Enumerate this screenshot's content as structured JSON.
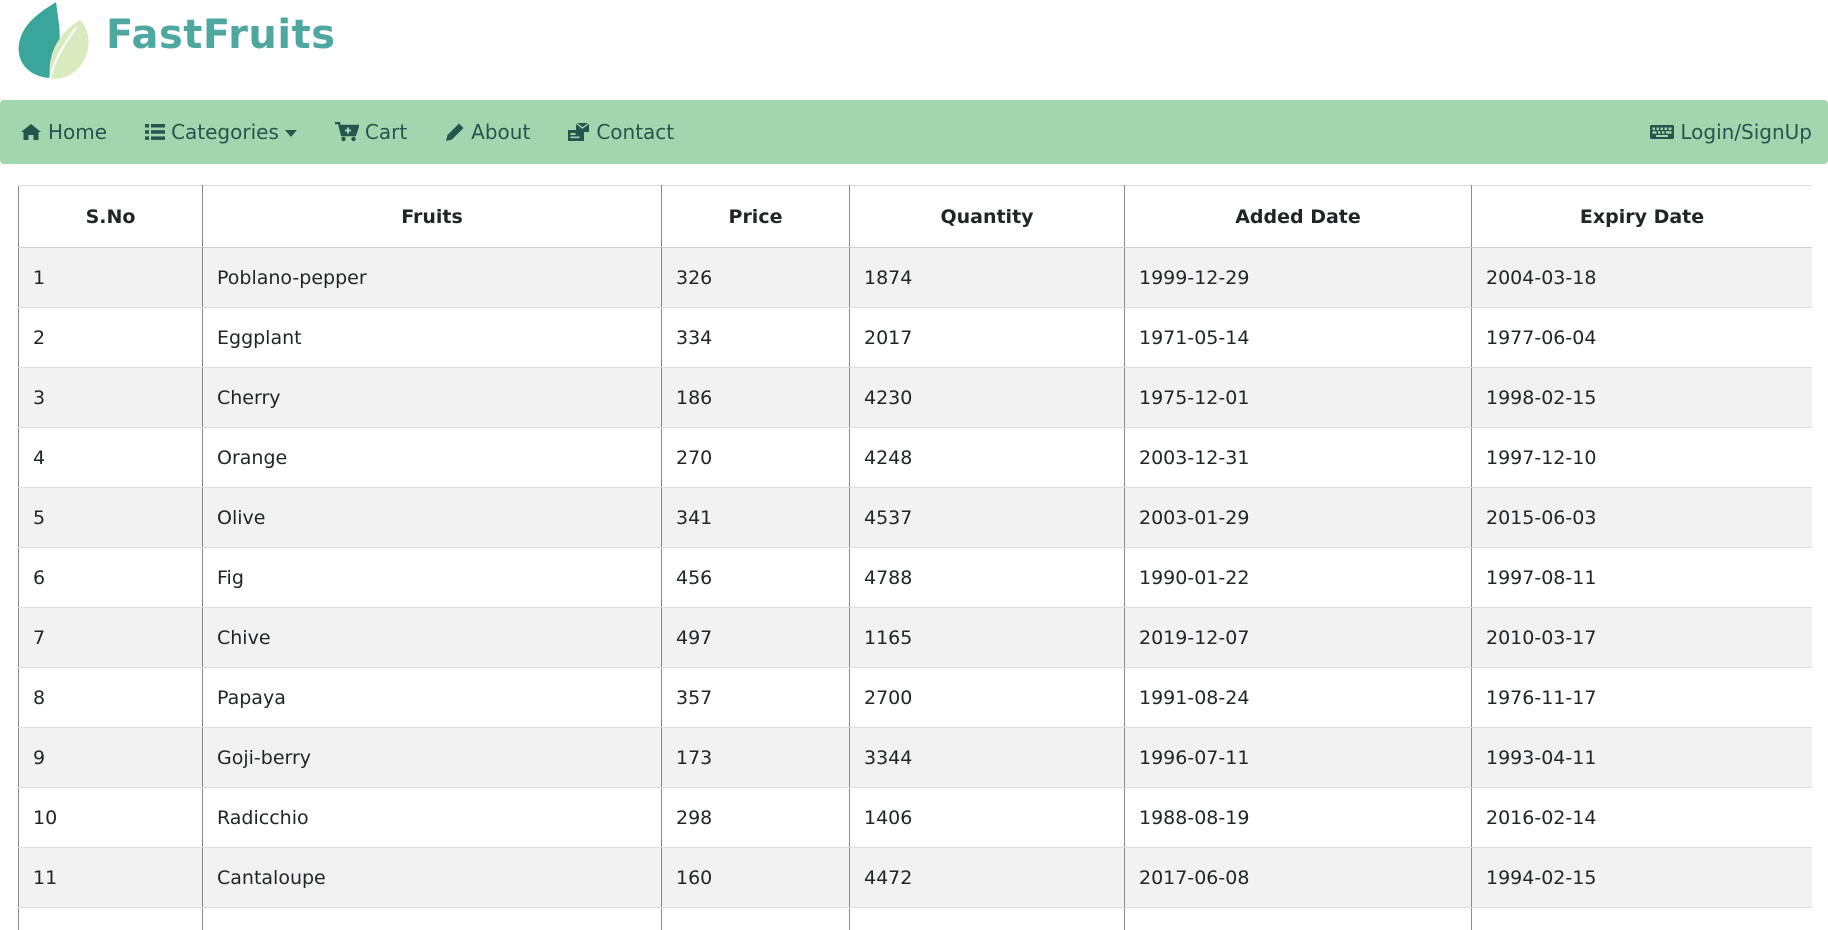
{
  "brand": {
    "name": "FastFruits",
    "colors": {
      "primary": "#4fa8a0",
      "leaf_light": "#d9eabf",
      "nav_bg": "#a3d5ae",
      "nav_text": "#25564e"
    }
  },
  "nav": {
    "items": [
      {
        "label": "Home",
        "icon": "home-icon"
      },
      {
        "label": "Categories",
        "icon": "list-icon"
      },
      {
        "label": "Cart",
        "icon": "cart-icon"
      },
      {
        "label": "About",
        "icon": "pencil-icon"
      },
      {
        "label": "Contact",
        "icon": "contact-icon"
      }
    ],
    "right": {
      "label": "Login/SignUp",
      "icon": "keyboard-icon"
    }
  },
  "table": {
    "columns": [
      "S.No",
      "Fruits",
      "Price",
      "Quantity",
      "Added Date",
      "Expiry Date"
    ],
    "rows": [
      [
        "1",
        "Poblano-pepper",
        "326",
        "1874",
        "1999-12-29",
        "2004-03-18"
      ],
      [
        "2",
        "Eggplant",
        "334",
        "2017",
        "1971-05-14",
        "1977-06-04"
      ],
      [
        "3",
        "Cherry",
        "186",
        "4230",
        "1975-12-01",
        "1998-02-15"
      ],
      [
        "4",
        "Orange",
        "270",
        "4248",
        "2003-12-31",
        "1997-12-10"
      ],
      [
        "5",
        "Olive",
        "341",
        "4537",
        "2003-01-29",
        "2015-06-03"
      ],
      [
        "6",
        "Fig",
        "456",
        "4788",
        "1990-01-22",
        "1997-08-11"
      ],
      [
        "7",
        "Chive",
        "497",
        "1165",
        "2019-12-07",
        "2010-03-17"
      ],
      [
        "8",
        "Papaya",
        "357",
        "2700",
        "1991-08-24",
        "1976-11-17"
      ],
      [
        "9",
        "Goji-berry",
        "173",
        "3344",
        "1996-07-11",
        "1993-04-11"
      ],
      [
        "10",
        "Radicchio",
        "298",
        "1406",
        "1988-08-19",
        "2016-02-14"
      ],
      [
        "11",
        "Cantaloupe",
        "160",
        "4472",
        "2017-06-08",
        "1994-02-15"
      ],
      [
        "",
        "",
        "",
        "",
        "",
        ""
      ]
    ]
  }
}
